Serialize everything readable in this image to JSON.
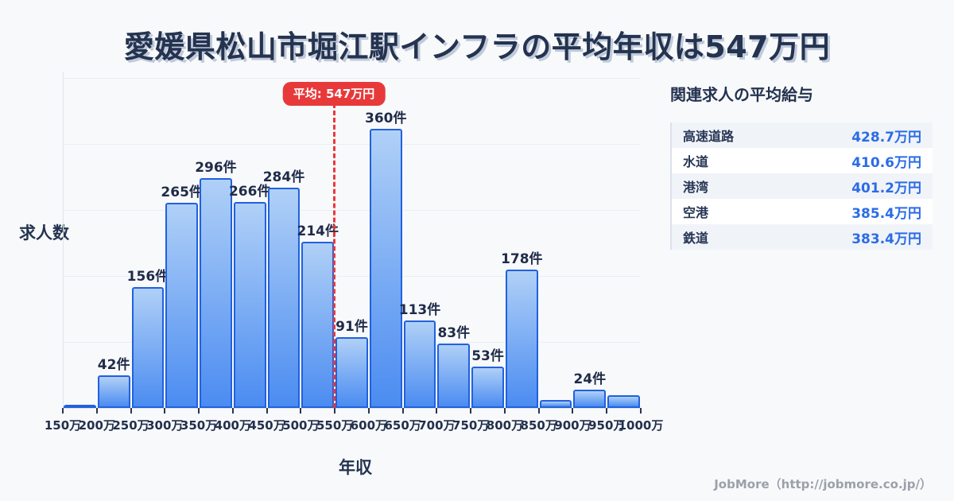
{
  "title": "愛媛県松山市堀江駅インフラの平均年収は547万円",
  "chart_data": {
    "type": "bar",
    "title": "愛媛県松山市堀江駅インフラの平均年収は547万円",
    "xlabel": "年収",
    "ylabel": "求人数",
    "x_tick_labels": [
      "150万",
      "200万",
      "250万",
      "300万",
      "350万",
      "400万",
      "450万",
      "500万",
      "550万",
      "600万",
      "650万",
      "700万",
      "750万",
      "800万",
      "850万",
      "900万",
      "950万",
      "1000万"
    ],
    "categories": [
      "150万-200万",
      "200万-250万",
      "250万-300万",
      "300万-350万",
      "350万-400万",
      "400万-450万",
      "450万-500万",
      "500万-550万",
      "550万-600万",
      "600万-650万",
      "650万-700万",
      "700万-750万",
      "750万-800万",
      "800万-850万",
      "850万-900万",
      "900万-950万",
      "950万-1000万"
    ],
    "values": [
      4,
      42,
      156,
      265,
      296,
      266,
      284,
      214,
      91,
      360,
      113,
      83,
      53,
      178,
      10,
      24,
      16
    ],
    "bar_labels": [
      "",
      "42件",
      "156件",
      "265件",
      "296件",
      "266件",
      "284件",
      "214件",
      "91件",
      "360件",
      "113件",
      "83件",
      "53件",
      "178件",
      "",
      "24件",
      ""
    ],
    "ylim": [
      0,
      430
    ],
    "grid": true,
    "legend": null,
    "average_marker": {
      "label": "平均: 547万円",
      "value": 547,
      "at_tick": "550万"
    }
  },
  "side_panel": {
    "title": "関連求人の平均給与",
    "rows": [
      {
        "label": "高速道路",
        "value": "428.7万円"
      },
      {
        "label": "水道",
        "value": "410.6万円"
      },
      {
        "label": "港湾",
        "value": "401.2万円"
      },
      {
        "label": "空港",
        "value": "385.4万円"
      },
      {
        "label": "鉄道",
        "value": "383.4万円"
      }
    ]
  },
  "footer": {
    "credit": "JobMore（http://jobmore.co.jp/）"
  },
  "colors": {
    "background": "#f8f9fb",
    "title_navy": "#24334f",
    "accent_red": "#e8393a",
    "bar_gradient_top": "#b0d0f7",
    "bar_gradient_bottom": "#4b8cf1",
    "bar_border": "#2161dd",
    "value_blue": "#2b6ce6",
    "gridline": "#e9edf3",
    "credit_gray": "#9ba1aa"
  }
}
